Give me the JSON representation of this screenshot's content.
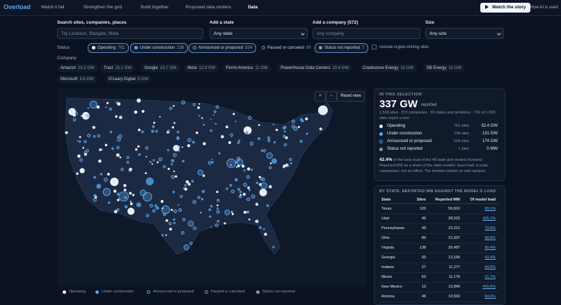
{
  "nav": {
    "brand": "Overload",
    "links": [
      "Watch it fail",
      "Strengthen the grid",
      "Build together",
      "Proposed data centers",
      "Data"
    ],
    "button": "Watch the story",
    "side_link": "How AI is used"
  },
  "filters": [
    {
      "label": "Search sites, companies, places",
      "placeholder": "Try Loudoun, Stargate, Meta"
    },
    {
      "label": "Add a state",
      "value": "Any state"
    },
    {
      "label": "Add a company (572)",
      "placeholder": "Any company"
    },
    {
      "label": "Size",
      "value": "Any size"
    }
  ],
  "status": {
    "label": "Status",
    "chips": [
      {
        "name": "Operating",
        "count": "761"
      },
      {
        "name": "Under construction",
        "count": "238"
      },
      {
        "name": "Announced or proposed",
        "count": "524"
      },
      {
        "name": "Paused or canceled",
        "count": "90"
      },
      {
        "name": "Status not reported",
        "count": "7"
      }
    ],
    "checkbox": "Include crypto-mining sites"
  },
  "company": {
    "label": "Company",
    "chips": [
      {
        "name": "Amazon",
        "size": "19.2 GW"
      },
      {
        "name": "Tract",
        "size": "15.1 GW"
      },
      {
        "name": "Google",
        "size": "13.7 GW"
      },
      {
        "name": "Meta",
        "size": "12.9 GW"
      },
      {
        "name": "Fermi America",
        "size": "11 GW"
      },
      {
        "name": "PowerHouse Data Centers",
        "size": "10.4 GW"
      },
      {
        "name": "Creekstone Energy",
        "size": "10 GW"
      },
      {
        "name": "SB Energy",
        "size": "10 GW"
      },
      {
        "name": "Microsoft",
        "size": "9.6 GW"
      },
      {
        "name": "O'Leary Digital",
        "size": "9 GW"
      }
    ]
  },
  "map": {
    "zoom_in": "+",
    "zoom_out": "−",
    "reset": "Reset view",
    "legend": [
      "Operating",
      "Under construction",
      "Announced or proposed",
      "Paused or canceled",
      "Status not reported"
    ]
  },
  "selection": {
    "heading": "IN THIS SELECTION",
    "total": "337 GW",
    "total_suffix": "reported",
    "summary": "1,530 sites · 572 companies · 55 states and territories · 719 of 1,530 sites report a size",
    "rows": [
      {
        "name": "Operating",
        "sites": "761 sites",
        "power": "32.4 GW"
      },
      {
        "name": "Under construction",
        "sites": "238 sites",
        "power": "131 GW"
      },
      {
        "name": "Announced or proposed",
        "sites": "524 sites",
        "power": "174 GW"
      },
      {
        "name": "Status not reported",
        "sites": "7 sites",
        "power": "0 MW"
      }
    ],
    "note_share": "42.4%",
    "note_text": " of the base load of the 48 state grid models involved. Reported MW as a share of the state models' base load: a scale comparison, not an effect. The models contain no real campus."
  },
  "table": {
    "title": "BY STATE: REPORTED MW AGAINST THE MODEL'S LOAD",
    "header": [
      "State",
      "Sites",
      "Reported MW",
      "Of model load"
    ],
    "rows": [
      [
        "Texas",
        "120",
        "59,810",
        "89.1%"
      ],
      [
        "Utah",
        "46",
        "28,515",
        "395.2%"
      ],
      [
        "Pennsylvania",
        "49",
        "23,212",
        "79.6%"
      ],
      [
        "Ohio",
        "89",
        "21,637",
        "68.8%"
      ],
      [
        "Virginia",
        "138",
        "20,497",
        "90.4%"
      ],
      [
        "Georgia",
        "60",
        "13,166",
        "43.4%"
      ],
      [
        "Indiana",
        "27",
        "11,277",
        "54.8%"
      ],
      [
        "Illinois",
        "63",
        "11,176",
        "31.7%"
      ],
      [
        "New Mexico",
        "13",
        "10,845",
        "440.5%"
      ],
      [
        "Arizona",
        "46",
        "10,502",
        "54.6%"
      ]
    ]
  }
}
